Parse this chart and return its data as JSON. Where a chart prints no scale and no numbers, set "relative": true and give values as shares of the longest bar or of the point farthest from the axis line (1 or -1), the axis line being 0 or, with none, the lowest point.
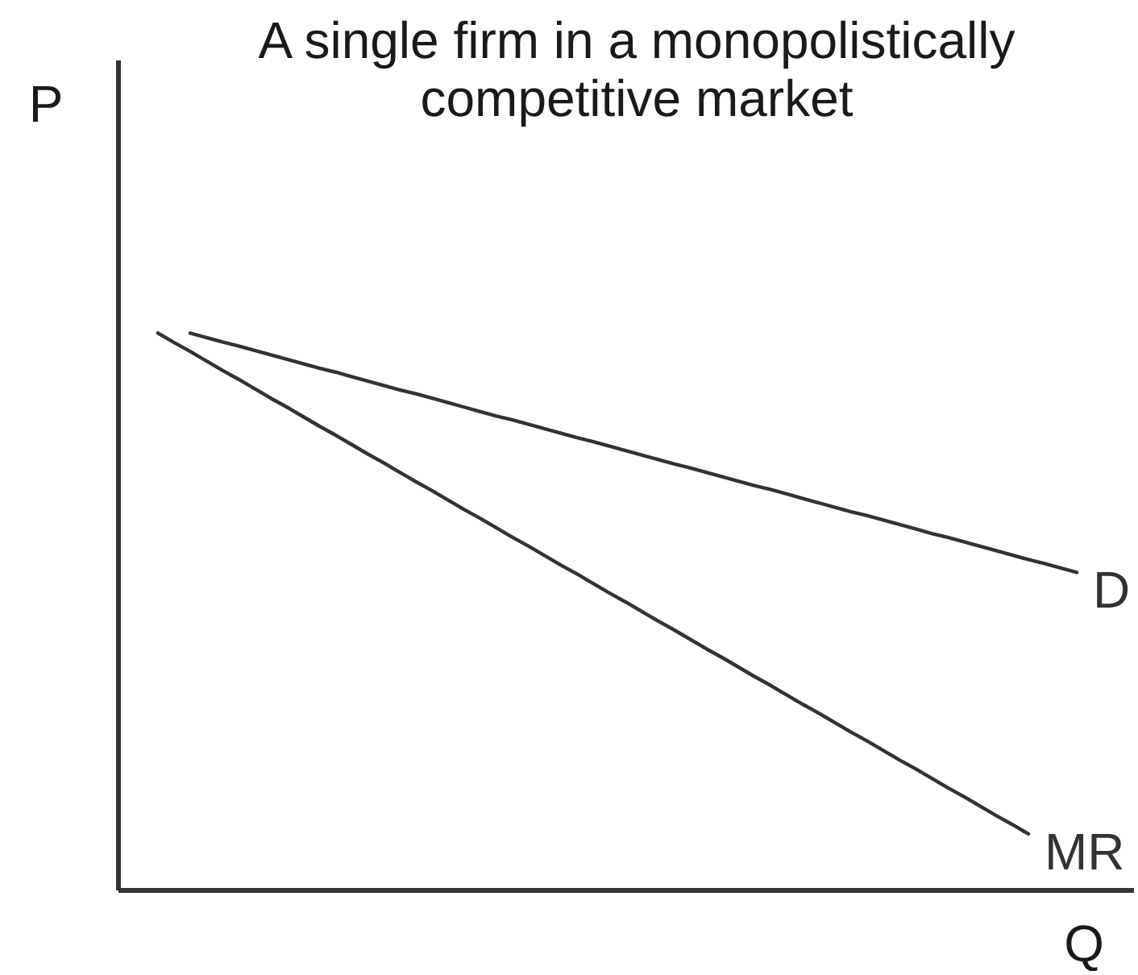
{
  "chart_data": {
    "type": "line",
    "title": "A single firm in a monopolistically competitive market",
    "xlabel": "Q",
    "ylabel": "P",
    "relative": true,
    "tick_labels": false,
    "categories": [
      null,
      null,
      null,
      null,
      null,
      null,
      null,
      null,
      null,
      null,
      null,
      null,
      null,
      null,
      null,
      null,
      null,
      null,
      null,
      null,
      null,
      null,
      null,
      null,
      null,
      null,
      null,
      null,
      null,
      null,
      null,
      null,
      null,
      null,
      null,
      null,
      null,
      null,
      null,
      null,
      null,
      null,
      null,
      null,
      null,
      null,
      null,
      null,
      null,
      null,
      null,
      null,
      null,
      null,
      null,
      null,
      null,
      null,
      null
    ],
    "series": [
      {
        "name": "D",
        "color": "#333333",
        "values": [
          null,
          null,
          1.0,
          0.992,
          0.984,
          0.977,
          0.969,
          0.961,
          0.953,
          0.945,
          0.937,
          0.93,
          0.922,
          0.914,
          0.906,
          0.898,
          0.891,
          0.883,
          0.875,
          0.867,
          0.859,
          0.851,
          0.844,
          0.836,
          0.828,
          0.82,
          0.812,
          0.805,
          0.797,
          0.789,
          0.781,
          0.773,
          0.765,
          0.758,
          0.75,
          0.742,
          0.734,
          0.726,
          0.719,
          0.711,
          0.703,
          0.695,
          0.687,
          0.679,
          0.672,
          0.664,
          0.656,
          0.648,
          0.64,
          0.633,
          0.625,
          0.617,
          0.609,
          0.601,
          0.593,
          0.586,
          0.578,
          0.57,
          null
        ]
      },
      {
        "name": "MR",
        "color": "#333333",
        "values": [
          1.0,
          0.983,
          0.967,
          0.95,
          0.933,
          0.917,
          0.9,
          0.883,
          0.867,
          0.85,
          0.833,
          0.817,
          0.8,
          0.783,
          0.767,
          0.75,
          0.733,
          0.717,
          0.7,
          0.683,
          0.667,
          0.65,
          0.633,
          0.617,
          0.6,
          0.583,
          0.567,
          0.55,
          0.533,
          0.517,
          0.5,
          0.483,
          0.467,
          0.45,
          0.433,
          0.417,
          0.4,
          0.383,
          0.367,
          0.35,
          0.333,
          0.317,
          0.3,
          0.283,
          0.267,
          0.25,
          0.233,
          0.217,
          0.2,
          0.183,
          0.167,
          0.15,
          0.133,
          0.117,
          0.1,
          null,
          null,
          null,
          null
        ]
      }
    ]
  }
}
